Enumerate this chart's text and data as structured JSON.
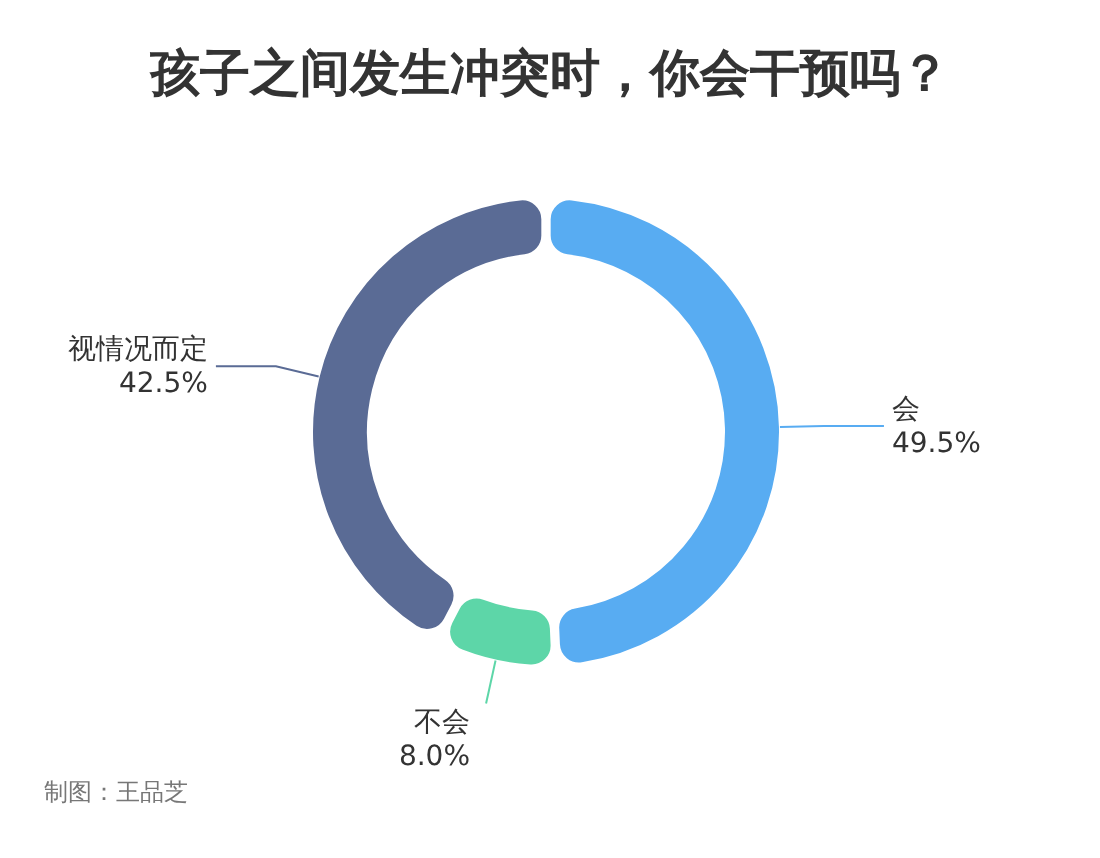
{
  "chart_data": {
    "type": "donut",
    "title": "孩子之间发生冲突时，你会干预吗？",
    "categories": [
      "会",
      "不会",
      "视情况而定"
    ],
    "values": [
      49.5,
      8.0,
      42.5
    ],
    "value_labels": [
      "49.5%",
      "8.0%",
      "42.5%"
    ],
    "colors": [
      "#58acf2",
      "#5dd6a8",
      "#5a6b95"
    ],
    "annotations": [
      "制图：王品芝"
    ]
  }
}
